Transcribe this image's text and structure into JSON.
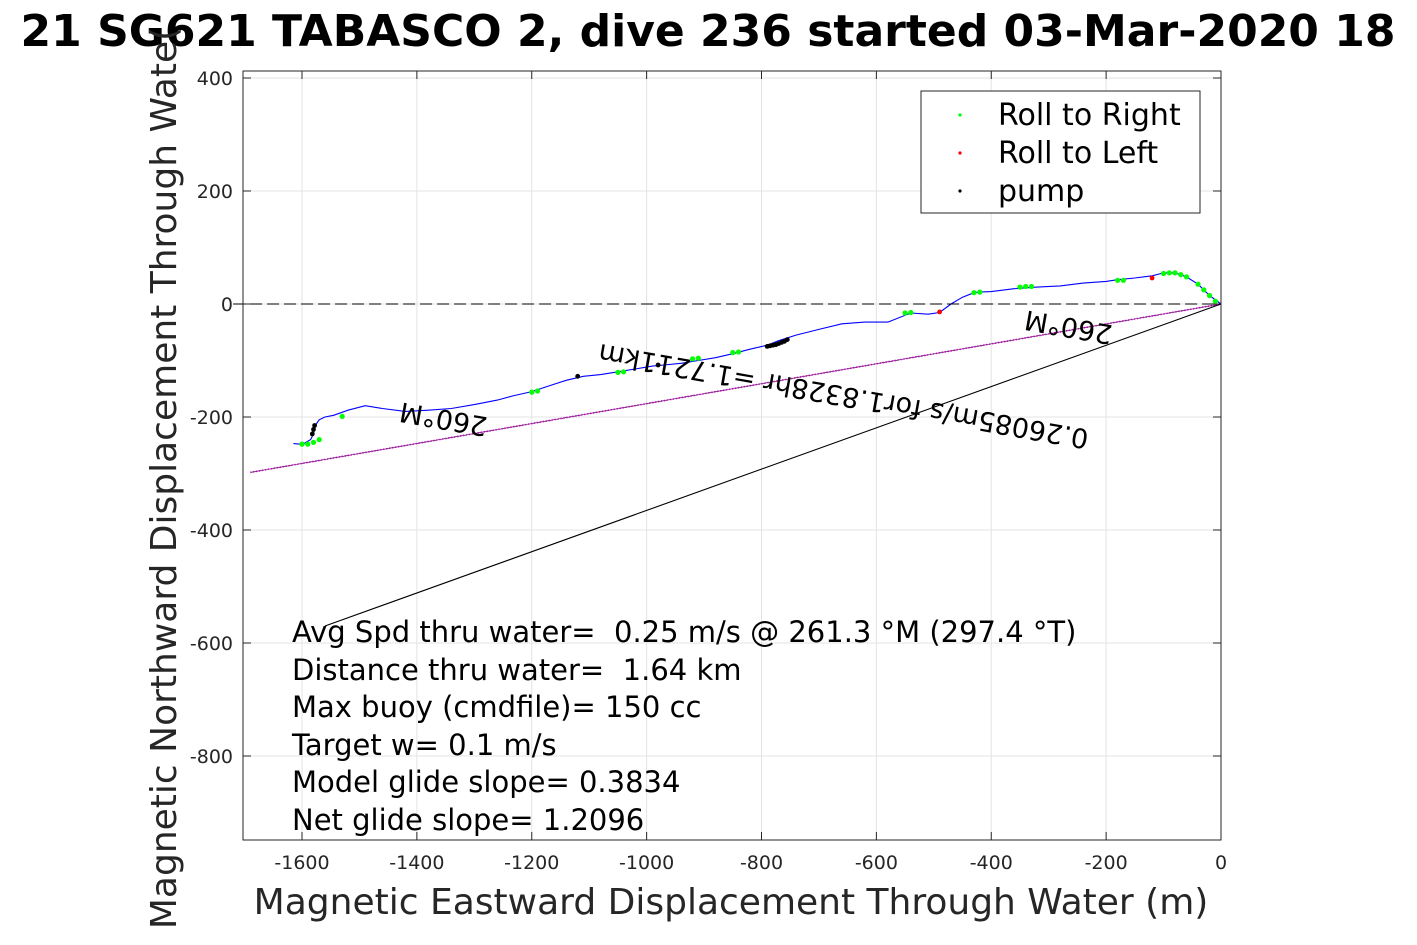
{
  "chart_data": {
    "type": "line",
    "title": "21 SG621 TABASCO 2, dive 236 started 03-Mar-2020 18",
    "xlabel": "Magnetic Eastward Displacement Through Water (m)",
    "ylabel": "Magnetic Northward Displacement Through Wate(",
    "xlim": [
      -1720,
      0
    ],
    "ylim": [
      -940,
      410
    ],
    "xticks": [
      -1600,
      -1400,
      -1200,
      -1000,
      -800,
      -600,
      -400,
      -200,
      0
    ],
    "yticks": [
      400,
      200,
      0,
      -200,
      -400,
      -600,
      -800
    ],
    "grid": true,
    "legend_position": "top-right",
    "legend": [
      {
        "label": "Roll to Right",
        "color": "#00ff00"
      },
      {
        "label": "Roll to Left",
        "color": "#ff0000"
      },
      {
        "label": "pump",
        "color": "#000000"
      }
    ],
    "series": [
      {
        "name": "",
        "style": "track",
        "color": "#0000ff",
        "x": [
          0,
          -20,
          -40,
          -60,
          -80,
          -100,
          -120,
          -150,
          -180,
          -200,
          -240,
          -280,
          -320,
          -360,
          -400,
          -420,
          -430,
          -450,
          -470,
          -490,
          -510,
          -540,
          -580,
          -620,
          -660,
          -700,
          -740,
          -770,
          -790,
          -820,
          -850,
          -880,
          -910,
          -940,
          -970,
          -990,
          -1020,
          -1050,
          -1080,
          -1110,
          -1140,
          -1170,
          -1200,
          -1230,
          -1260,
          -1300,
          -1340,
          -1380,
          -1420,
          -1460,
          -1490,
          -1520,
          -1545,
          -1560,
          -1570,
          -1575,
          -1578,
          -1580,
          -1585,
          -1595,
          -1605,
          -1615
        ],
        "y": [
          0,
          15,
          35,
          48,
          55,
          55,
          50,
          46,
          43,
          40,
          37,
          32,
          30,
          27,
          22,
          21,
          20,
          12,
          0,
          -15,
          -18,
          -16,
          -32,
          -32,
          -35,
          -45,
          -55,
          -65,
          -73,
          -80,
          -88,
          -95,
          -100,
          -105,
          -108,
          -110,
          -115,
          -120,
          -125,
          -128,
          -135,
          -145,
          -155,
          -162,
          -170,
          -178,
          -185,
          -188,
          -190,
          -185,
          -180,
          -188,
          -197,
          -200,
          -205,
          -212,
          -220,
          -230,
          -240,
          -246,
          -248,
          -247
        ]
      },
      {
        "name": "",
        "style": "magenta-dotted",
        "color": "#cc00cc",
        "x": [
          0,
          -1690
        ],
        "y": [
          0,
          -298
        ]
      },
      {
        "name": "",
        "style": "black-line",
        "color": "#000000",
        "x": [
          0,
          -1560
        ],
        "y": [
          0,
          -570
        ]
      },
      {
        "name": "",
        "style": "zero-dashed",
        "color": "#000000",
        "x": [
          -1720,
          0
        ],
        "y": [
          0,
          0
        ]
      }
    ],
    "markers": {
      "roll_right": {
        "color": "#00ff00",
        "x": [
          -10,
          -20,
          -30,
          -40,
          -60,
          -70,
          -80,
          -90,
          -100,
          -170,
          -180,
          -330,
          -340,
          -350,
          -420,
          -430,
          -540,
          -550,
          -840,
          -850,
          -910,
          -920,
          -1040,
          -1050,
          -1190,
          -1200,
          -1530,
          -1570,
          -1580,
          -1590,
          -1600
        ],
        "y": [
          5,
          15,
          25,
          35,
          48,
          52,
          55,
          55,
          54,
          42,
          42,
          31,
          31,
          30,
          21,
          20,
          -15,
          -16,
          -85,
          -86,
          -96,
          -97,
          -120,
          -121,
          -154,
          -156,
          -199,
          -240,
          -245,
          -248,
          -248
        ]
      },
      "roll_left": {
        "color": "#ff0000",
        "x": [
          -120,
          -490
        ],
        "y": [
          46,
          -14
        ]
      },
      "pump": {
        "color": "#000000",
        "x": [
          -755,
          -760,
          -765,
          -770,
          -775,
          -780,
          -785,
          -790,
          -980,
          -1120,
          -1578,
          -1580,
          -1582
        ],
        "y": [
          -63,
          -66,
          -68,
          -70,
          -72,
          -73,
          -74,
          -75,
          -108,
          -128,
          -215,
          -222,
          -230
        ]
      }
    }
  },
  "stats": {
    "line1": "Avg Spd thru water=  0.25 m/s @ 261.3 °M (297.4 °T)",
    "line2": "Distance thru water=  1.64 km",
    "line3": "Max buoy (cmdfile)= 150 cc",
    "line4": "Target w= 0.1 m/s",
    "line5": "Model glide slope= 0.3834",
    "line6": "Net glide slope= 1.2096"
  },
  "annotations": {
    "heading_end": "260°M",
    "speed_note": "0.26085m/s for1.8328hr =1.7211km",
    "heading_start": "260°M"
  }
}
